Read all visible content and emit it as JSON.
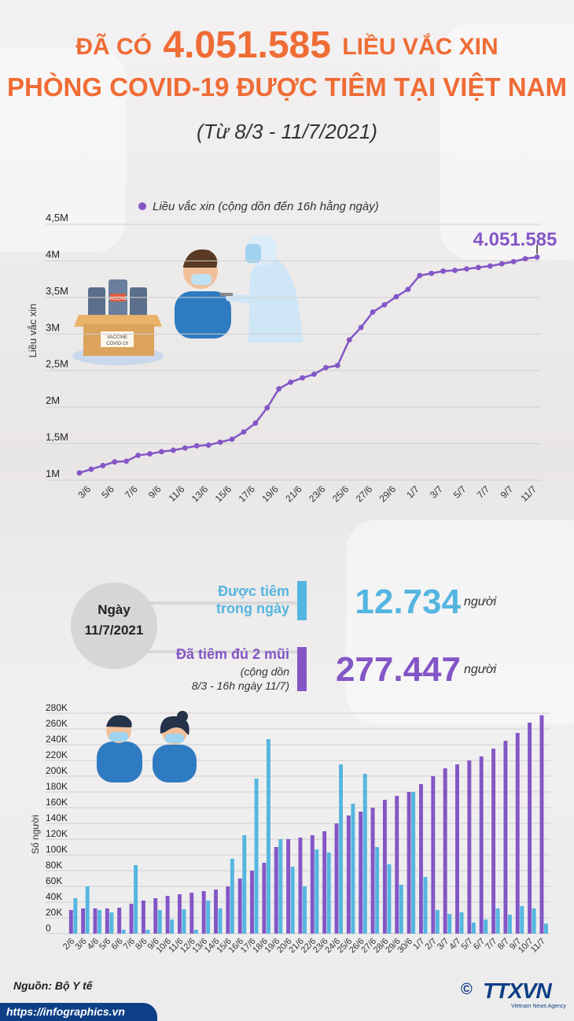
{
  "header": {
    "title_prefix": "ĐÃ CÓ",
    "title_number": "4.051.585",
    "title_suffix": "LIỀU VẮC XIN",
    "title_line2": "PHÒNG COVID-19 ĐƯỢC TIÊM TẠI VIỆT NAM",
    "subtitle": "(Từ 8/3 - 11/7/2021)"
  },
  "colors": {
    "orange": "#ef6c35",
    "purple": "#8356c6",
    "cyan": "#54b6e0",
    "navy": "#0e3f86"
  },
  "illustrations": {
    "vaccine_label": "VACCINE",
    "box_label_line1": "VACCINE",
    "box_label_line2": "COVID-19"
  },
  "chart_data": [
    {
      "type": "line",
      "legend": "Liều vắc xin (cộng dồn đến 16h hằng ngày)",
      "ylabel": "Liều vắc xin",
      "ylim": [
        1000000,
        4500000
      ],
      "y_ticks": [
        1000000,
        1500000,
        2000000,
        2500000,
        3000000,
        3500000,
        4000000,
        4500000
      ],
      "y_tick_labels": [
        "1M",
        "1,5M",
        "2M",
        "2,5M",
        "3M",
        "3,5M",
        "4M",
        "4,5M"
      ],
      "x": [
        "2/6",
        "3/6",
        "4/6",
        "5/6",
        "6/6",
        "7/6",
        "8/6",
        "9/6",
        "10/6",
        "11/6",
        "12/6",
        "13/6",
        "14/6",
        "15/6",
        "16/6",
        "17/6",
        "18/6",
        "19/6",
        "20/6",
        "21/6",
        "22/6",
        "23/6",
        "24/6",
        "25/6",
        "26/6",
        "27/6",
        "28/6",
        "29/6",
        "30/6",
        "1/7",
        "2/7",
        "3/7",
        "4/7",
        "5/7",
        "6/7",
        "7/7",
        "8/7",
        "9/7",
        "10/7",
        "11/7"
      ],
      "x_tick_labels": [
        "3/6",
        "5/6",
        "7/6",
        "9/6",
        "11/6",
        "13/6",
        "15/6",
        "17/6",
        "19/6",
        "21/6",
        "23/6",
        "25/6",
        "27/6",
        "29/6",
        "1/7",
        "3/7",
        "5/7",
        "7/7",
        "9/7",
        "11/7"
      ],
      "values": [
        1100000,
        1150000,
        1200000,
        1250000,
        1260000,
        1340000,
        1360000,
        1390000,
        1410000,
        1440000,
        1470000,
        1480000,
        1520000,
        1560000,
        1660000,
        1780000,
        1990000,
        2250000,
        2340000,
        2400000,
        2450000,
        2540000,
        2570000,
        2920000,
        3090000,
        3300000,
        3400000,
        3510000,
        3610000,
        3800000,
        3830000,
        3860000,
        3870000,
        3890000,
        3910000,
        3930000,
        3960000,
        3990000,
        4030000,
        4051585
      ],
      "last_label": "4.051.585"
    },
    {
      "type": "bar",
      "date_label": "Ngày\n11/7/2021",
      "stats": [
        {
          "label": "Được tiêm\ntrong ngày",
          "sublabel": "",
          "value": "12.734",
          "unit": "người",
          "color": "#54b6e0"
        },
        {
          "label": "Đã tiêm đủ 2 mũi",
          "sublabel": "(cộng dồn\n8/3 - 16h ngày 11/7)",
          "value": "277.447",
          "unit": "người",
          "color": "#8356c6"
        }
      ]
    },
    {
      "type": "bar",
      "ylabel": "Số người",
      "ylim": [
        0,
        280000
      ],
      "y_ticks": [
        0,
        20000,
        40000,
        60000,
        80000,
        100000,
        120000,
        140000,
        160000,
        180000,
        200000,
        220000,
        240000,
        260000,
        280000
      ],
      "y_tick_labels": [
        "0",
        "20K",
        "40K",
        "60K",
        "80K",
        "100K",
        "120K",
        "140K",
        "160K",
        "180K",
        "200K",
        "220K",
        "240K",
        "260K",
        "280K"
      ],
      "categories": [
        "2/6",
        "3/6",
        "4/6",
        "5/6",
        "6/6",
        "7/6",
        "8/6",
        "9/6",
        "10/6",
        "11/6",
        "12/6",
        "13/6",
        "14/6",
        "15/6",
        "16/6",
        "17/6",
        "18/6",
        "19/6",
        "20/6",
        "21/6",
        "22/6",
        "23/6",
        "24/6",
        "25/6",
        "26/6",
        "27/6",
        "28/6",
        "29/6",
        "30/6",
        "1/7",
        "2/7",
        "3/7",
        "4/7",
        "5/7",
        "6/7",
        "7/7",
        "8/7",
        "9/7",
        "10/7",
        "11/7"
      ],
      "series": [
        {
          "name": "purple",
          "values": [
            30000,
            32000,
            32000,
            32000,
            33000,
            38000,
            42000,
            45000,
            48000,
            50000,
            52000,
            54000,
            56000,
            60000,
            70000,
            80000,
            90000,
            110000,
            120000,
            122000,
            125000,
            130000,
            140000,
            150000,
            155000,
            160000,
            170000,
            175000,
            180000,
            190000,
            200000,
            210000,
            215000,
            220000,
            225000,
            235000,
            245000,
            255000,
            268000,
            277447
          ]
        },
        {
          "name": "cyan",
          "values": [
            45000,
            60000,
            30000,
            27000,
            5000,
            87000,
            5000,
            30000,
            18000,
            31000,
            5000,
            42000,
            32000,
            95000,
            125000,
            197000,
            247000,
            120000,
            85000,
            60000,
            107000,
            103000,
            215000,
            165000,
            203000,
            110000,
            88000,
            62000,
            180000,
            72000,
            30000,
            25000,
            27000,
            14000,
            18000,
            32000,
            24000,
            35000,
            32000,
            12734
          ]
        }
      ]
    }
  ],
  "footer": {
    "source": "Nguồn: Bộ Y tế",
    "url": "https://infographics.vn",
    "logo": "TTXVN",
    "logo_sub": "Vietnam News Agency",
    "copyright": "©"
  }
}
